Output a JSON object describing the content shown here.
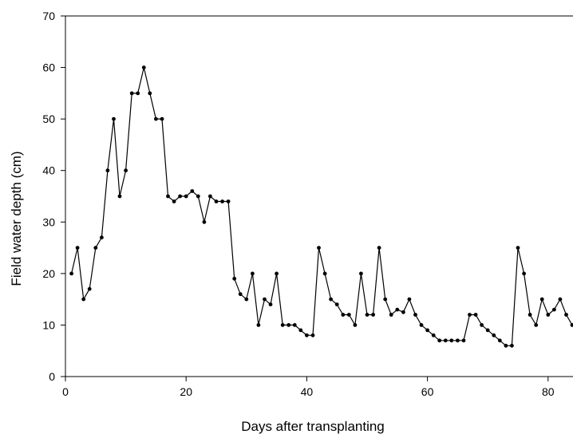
{
  "chart_data": {
    "type": "line",
    "title": "",
    "xlabel": "Days after transplanting",
    "ylabel": "Field water depth (cm)",
    "xlim": [
      0,
      84
    ],
    "ylim": [
      0,
      70
    ],
    "x_ticks": [
      0,
      20,
      40,
      60,
      80
    ],
    "y_ticks": [
      0,
      10,
      20,
      30,
      40,
      50,
      60,
      70
    ],
    "grid": false,
    "legend": "none",
    "line_color": "#000000",
    "marker": "filled-circle",
    "x": [
      1,
      2,
      3,
      4,
      5,
      6,
      7,
      8,
      9,
      10,
      11,
      12,
      13,
      14,
      15,
      16,
      17,
      18,
      19,
      20,
      21,
      22,
      23,
      24,
      25,
      26,
      27,
      28,
      29,
      30,
      31,
      32,
      33,
      34,
      35,
      36,
      37,
      38,
      39,
      40,
      41,
      42,
      43,
      44,
      45,
      46,
      47,
      48,
      49,
      50,
      51,
      52,
      53,
      54,
      55,
      56,
      57,
      58,
      59,
      60,
      61,
      62,
      63,
      64,
      65,
      66,
      67,
      68,
      69,
      70,
      71,
      72,
      73,
      74,
      75,
      76,
      77,
      78,
      79,
      80,
      81,
      82,
      83,
      84
    ],
    "y": [
      20,
      25,
      15,
      17,
      25,
      27,
      40,
      50,
      35,
      40,
      55,
      55,
      60,
      55,
      50,
      50,
      35,
      34,
      35,
      35,
      36,
      35,
      30,
      35,
      34,
      34,
      34,
      19,
      16,
      15,
      20,
      10,
      15,
      14,
      20,
      10,
      10,
      10,
      9,
      8,
      8,
      25,
      20,
      15,
      14,
      12,
      12,
      10,
      20,
      12,
      12,
      25,
      15,
      12,
      13,
      12.5,
      15,
      12,
      10,
      9,
      8,
      7,
      7,
      7,
      7,
      7,
      12,
      12,
      10,
      9,
      8,
      7,
      6,
      6,
      25,
      20,
      12,
      10,
      15,
      12,
      13,
      15,
      12,
      10
    ]
  }
}
